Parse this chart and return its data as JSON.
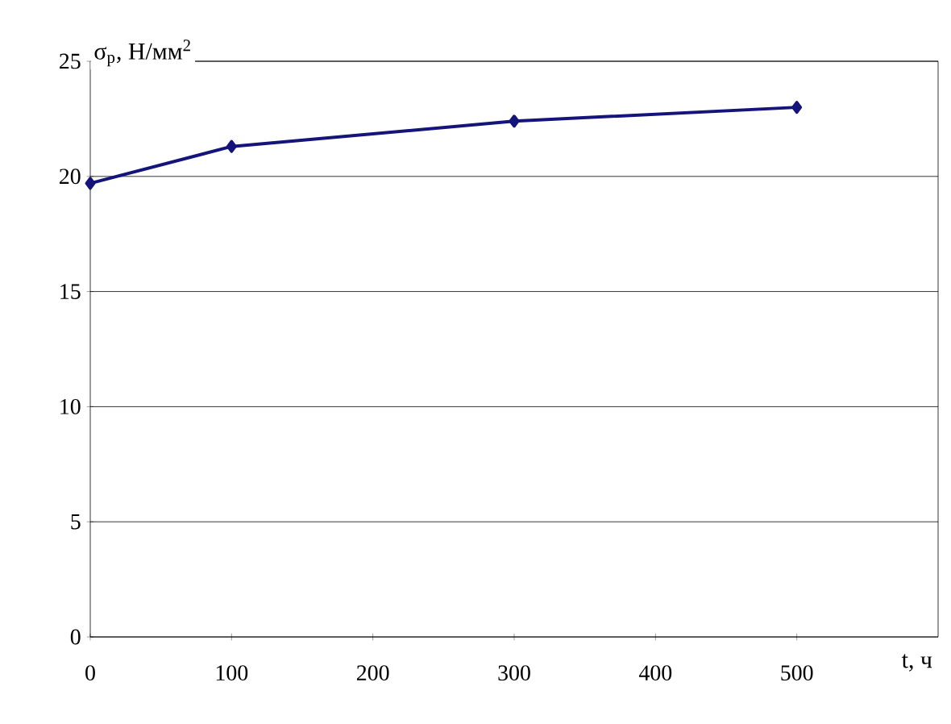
{
  "chart_data": {
    "type": "line",
    "xlabel": "t, ч",
    "ylabel": "σ$_{р}$, Н/мм$^{2}$",
    "x": [
      0,
      100,
      300,
      500
    ],
    "series": [
      {
        "color": "#14147a",
        "values": [
          19.7,
          21.3,
          22.4,
          23.0
        ]
      }
    ],
    "xlim": [
      0,
      600
    ],
    "xticks": [
      0,
      100,
      200,
      300,
      400,
      500
    ],
    "ylim": [
      0,
      25
    ],
    "yticks": [
      0,
      5,
      10,
      15,
      20,
      25
    ],
    "grid": "y",
    "marker": "diamond",
    "line_style": "solid"
  }
}
